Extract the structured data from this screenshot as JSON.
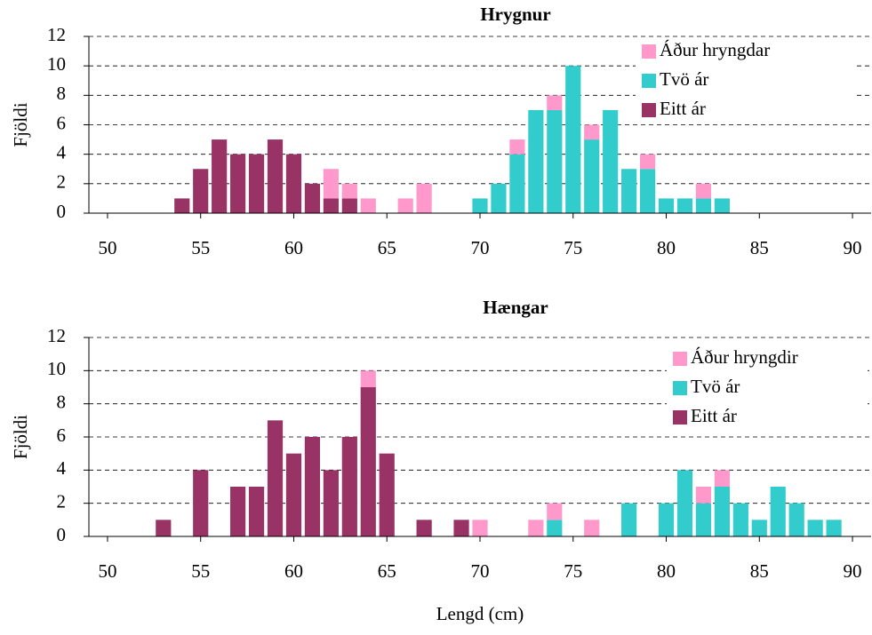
{
  "chart_data": [
    {
      "type": "bar",
      "title": "Hrygnur",
      "ylabel": "Fjöldi",
      "stacked": true,
      "grid": true,
      "x": [
        51,
        52,
        53,
        54,
        55,
        56,
        57,
        58,
        59,
        60,
        61,
        62,
        63,
        64,
        65,
        66,
        67,
        68,
        69,
        70,
        71,
        72,
        73,
        74,
        75,
        76,
        77,
        78,
        79,
        80,
        81,
        82,
        83,
        84,
        85,
        86,
        87,
        88,
        89
      ],
      "series": [
        {
          "name": "Eitt ár",
          "color": "#993366",
          "values": [
            0,
            0,
            0,
            1,
            3,
            5,
            4,
            4,
            5,
            4,
            2,
            1,
            1,
            0,
            0,
            0,
            0,
            0,
            0,
            0,
            0,
            0,
            0,
            0,
            0,
            0,
            0,
            0,
            0,
            0,
            0,
            0,
            0,
            0,
            0,
            0,
            0,
            0,
            0
          ]
        },
        {
          "name": "Tvö ár",
          "color": "#33cccc",
          "values": [
            0,
            0,
            0,
            0,
            0,
            0,
            0,
            0,
            0,
            0,
            0,
            0,
            0,
            0,
            0,
            0,
            0,
            0,
            0,
            1,
            2,
            4,
            7,
            7,
            10,
            5,
            7,
            3,
            3,
            1,
            1,
            1,
            1,
            0,
            0,
            0,
            0,
            0,
            0
          ]
        },
        {
          "name": "Áður hryngdar",
          "color": "#ff99cc",
          "values": [
            0,
            0,
            0,
            0,
            0,
            0,
            0,
            0,
            0,
            0,
            0,
            2,
            1,
            1,
            0,
            1,
            2,
            0,
            0,
            0,
            0,
            1,
            0,
            1,
            0,
            1,
            0,
            0,
            1,
            0,
            0,
            1,
            0,
            0,
            0,
            0,
            0,
            0,
            0
          ]
        }
      ],
      "xlim": [
        49,
        91
      ],
      "xticks": [
        50,
        55,
        60,
        65,
        70,
        75,
        80,
        85,
        90
      ],
      "ylim": [
        0,
        12
      ],
      "yticks": [
        0,
        2,
        4,
        6,
        8,
        10,
        12
      ],
      "legend": "top-right"
    },
    {
      "type": "bar",
      "title": "Hængar",
      "ylabel": "Fjöldi",
      "xlabel": "Lengd (cm)",
      "stacked": true,
      "grid": true,
      "x": [
        51,
        52,
        53,
        54,
        55,
        56,
        57,
        58,
        59,
        60,
        61,
        62,
        63,
        64,
        65,
        66,
        67,
        68,
        69,
        70,
        71,
        72,
        73,
        74,
        75,
        76,
        77,
        78,
        79,
        80,
        81,
        82,
        83,
        84,
        85,
        86,
        87,
        88,
        89
      ],
      "series": [
        {
          "name": "Eitt ár",
          "color": "#993366",
          "values": [
            0,
            0,
            1,
            0,
            4,
            0,
            3,
            3,
            7,
            5,
            6,
            4,
            6,
            9,
            5,
            0,
            1,
            0,
            1,
            0,
            0,
            0,
            0,
            0,
            0,
            0,
            0,
            0,
            0,
            0,
            0,
            0,
            0,
            0,
            0,
            0,
            0,
            0,
            0
          ]
        },
        {
          "name": "Tvö ár",
          "color": "#33cccc",
          "values": [
            0,
            0,
            0,
            0,
            0,
            0,
            0,
            0,
            0,
            0,
            0,
            0,
            0,
            0,
            0,
            0,
            0,
            0,
            0,
            0,
            0,
            0,
            0,
            1,
            0,
            0,
            0,
            2,
            0,
            2,
            4,
            2,
            3,
            2,
            1,
            3,
            2,
            1,
            1
          ]
        },
        {
          "name": "Áður hryngdir",
          "color": "#ff99cc",
          "values": [
            0,
            0,
            0,
            0,
            0,
            0,
            0,
            0,
            0,
            0,
            0,
            0,
            0,
            1,
            0,
            0,
            0,
            0,
            0,
            1,
            0,
            0,
            1,
            1,
            0,
            1,
            0,
            0,
            0,
            0,
            0,
            1,
            1,
            0,
            0,
            0,
            0,
            0,
            0
          ]
        }
      ],
      "xlim": [
        49,
        91
      ],
      "xticks": [
        50,
        55,
        60,
        65,
        70,
        75,
        80,
        85,
        90
      ],
      "ylim": [
        0,
        12
      ],
      "yticks": [
        0,
        2,
        4,
        6,
        8,
        10,
        12
      ],
      "legend": "top-right"
    }
  ]
}
